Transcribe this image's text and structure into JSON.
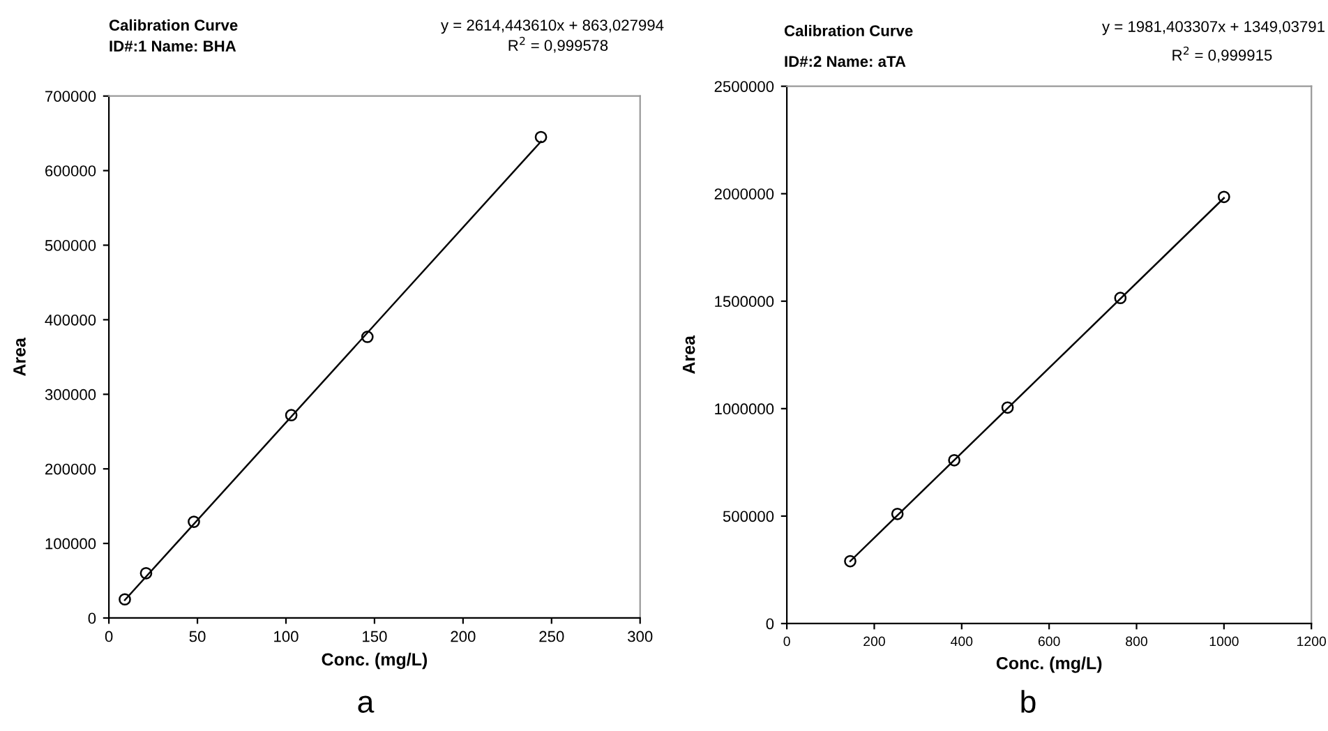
{
  "chart_data": [
    {
      "type": "scatter",
      "title": "Calibration Curve",
      "subtitle": "ID#:1 Name: BHA",
      "xlabel": "Conc. (mg/L)",
      "ylabel": "Area",
      "annotations": [
        "y = 2614,443610x + 863,027994",
        "R$^{2}$ = 0,999578",
        "a"
      ],
      "x": [
        9,
        21,
        48,
        103,
        146,
        244
      ],
      "series": [
        {
          "color": "#000000",
          "marker": "circle",
          "values": [
            25000,
            60000,
            129000,
            272000,
            377000,
            645000
          ]
        },
        {
          "type": "line",
          "color": "#000000",
          "marker": "none",
          "x": [
            9,
            244
          ],
          "values": [
            24000,
            639000
          ]
        }
      ],
      "xlim": [
        0,
        300
      ],
      "xticks": [
        0,
        50,
        100,
        150,
        200,
        250,
        300
      ],
      "ylim": [
        0,
        700000
      ],
      "yticks": [
        0,
        100000,
        200000,
        300000,
        400000,
        500000,
        600000,
        700000
      ],
      "grid": false,
      "legend": false
    },
    {
      "type": "scatter",
      "title": "Calibration Curve",
      "subtitle": "ID#:2 Name: aTA",
      "xlabel": "Conc. (mg/L)",
      "ylabel": "Area",
      "annotations": [
        "y = 1981,403307x + 1349,03791",
        "R$^{2}$ = 0,999915",
        "b"
      ],
      "x": [
        145,
        253,
        383,
        505,
        763,
        1000
      ],
      "series": [
        {
          "color": "#000000",
          "marker": "circle",
          "values": [
            290000,
            510000,
            760000,
            1005000,
            1515000,
            1985000
          ]
        },
        {
          "type": "line",
          "color": "#000000",
          "marker": "none",
          "x": [
            145,
            1000
          ],
          "values": [
            290000,
            1980000
          ]
        }
      ],
      "xlim": [
        0,
        1200
      ],
      "xticks": [
        0,
        200,
        400,
        600,
        800,
        1000,
        1200
      ],
      "ylim": [
        0,
        2500000
      ],
      "yticks": [
        0,
        500000,
        1000000,
        1500000,
        2000000,
        2500000
      ],
      "grid": false,
      "legend": false
    }
  ]
}
